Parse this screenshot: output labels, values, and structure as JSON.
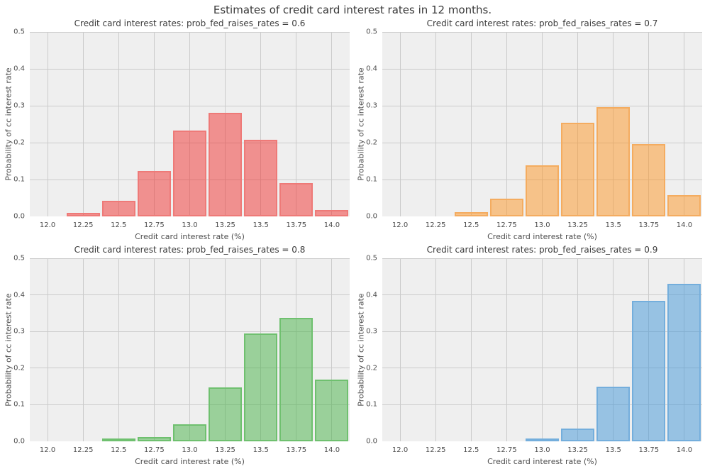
{
  "title": "Estimates of credit card interest rates in 12 months.",
  "style": {
    "figure_background": "#ffffff",
    "plot_background": "#efefef",
    "grid_color": "#cbcbcb",
    "title_color": "#3a3a3a",
    "label_color": "#4c4c4c"
  },
  "chart_data": [
    {
      "type": "bar",
      "title": "Credit card interest rates: prob_fed_raises_rates = 0.6",
      "xlabel": "Credit card interest rate (%)",
      "ylabel": "Probability of cc interest rate",
      "xlim": [
        11.875,
        14.125
      ],
      "ylim": [
        0,
        0.5
      ],
      "grid": true,
      "legend": "none",
      "xtick_labels": [
        "12.0",
        "12.25",
        "12.5",
        "12.75",
        "13.0",
        "13.25",
        "13.5",
        "13.75",
        "14.0"
      ],
      "ytick_labels": [
        "0.0",
        "0.1",
        "0.2",
        "0.3",
        "0.4",
        "0.5"
      ],
      "bin_width": 0.25,
      "bin_centers": [
        12.25,
        12.5,
        12.75,
        13.0,
        13.25,
        13.5,
        13.75,
        14.0
      ],
      "values": [
        0.01,
        0.042,
        0.123,
        0.232,
        0.28,
        0.208,
        0.091,
        0.017
      ],
      "fill_color": "rgba(241,49,47,0.5)",
      "edge_color": "#ee7a78"
    },
    {
      "type": "bar",
      "title": "Credit card interest rates: prob_fed_raises_rates = 0.7",
      "xlabel": "Credit card interest rate (%)",
      "ylabel": "Probability of cc interest rate",
      "xlim": [
        11.875,
        14.125
      ],
      "ylim": [
        0,
        0.5
      ],
      "grid": true,
      "legend": "none",
      "xtick_labels": [
        "12.0",
        "12.25",
        "12.5",
        "12.75",
        "13.0",
        "13.25",
        "13.5",
        "13.75",
        "14.0"
      ],
      "ytick_labels": [
        "0.0",
        "0.1",
        "0.2",
        "0.3",
        "0.4",
        "0.5"
      ],
      "bin_width": 0.25,
      "bin_centers": [
        12.5,
        12.75,
        13.0,
        13.25,
        13.5,
        13.75,
        14.0
      ],
      "values": [
        0.012,
        0.049,
        0.138,
        0.254,
        0.297,
        0.197,
        0.058
      ],
      "fill_color": "rgba(253,149,35,0.5)",
      "edge_color": "#f4ac60"
    },
    {
      "type": "bar",
      "title": "Credit card interest rates: prob_fed_raises_rates = 0.8",
      "xlabel": "Credit card interest rate (%)",
      "ylabel": "Probability of cc interest rate",
      "xlim": [
        11.875,
        14.125
      ],
      "ylim": [
        0,
        0.5
      ],
      "grid": true,
      "legend": "none",
      "xtick_labels": [
        "12.0",
        "12.25",
        "12.5",
        "12.75",
        "13.0",
        "13.25",
        "13.5",
        "13.75",
        "14.0"
      ],
      "ytick_labels": [
        "0.0",
        "0.1",
        "0.2",
        "0.3",
        "0.4",
        "0.5"
      ],
      "bin_width": 0.25,
      "bin_centers": [
        12.5,
        12.75,
        13.0,
        13.25,
        13.5,
        13.75,
        14.0
      ],
      "values": [
        0.004,
        0.011,
        0.046,
        0.148,
        0.294,
        0.337,
        0.168
      ],
      "fill_color": "rgba(69,177,69,0.5)",
      "edge_color": "#6fc06f"
    },
    {
      "type": "bar",
      "title": "Credit card interest rates: prob_fed_raises_rates = 0.9",
      "xlabel": "Credit card interest rate (%)",
      "ylabel": "Probability of cc interest rate",
      "xlim": [
        11.875,
        14.125
      ],
      "ylim": [
        0,
        0.5
      ],
      "grid": true,
      "legend": "none",
      "xtick_labels": [
        "12.0",
        "12.25",
        "12.5",
        "12.75",
        "13.0",
        "13.25",
        "13.5",
        "13.75",
        "14.0"
      ],
      "ytick_labels": [
        "0.0",
        "0.1",
        "0.2",
        "0.3",
        "0.4",
        "0.5"
      ],
      "bin_width": 0.25,
      "bin_centers": [
        13.0,
        13.25,
        13.5,
        13.75,
        14.0
      ],
      "values": [
        0.008,
        0.034,
        0.15,
        0.384,
        0.43
      ],
      "fill_color": "rgba(63,149,215,0.5)",
      "edge_color": "#74aedc"
    }
  ]
}
